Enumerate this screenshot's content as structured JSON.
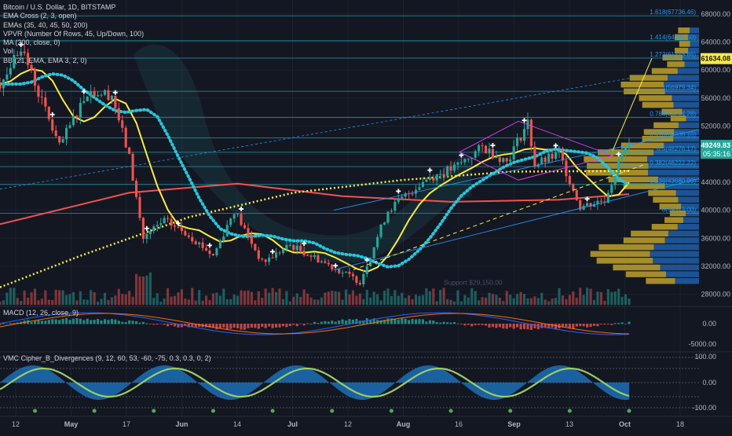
{
  "symbol_title": "Bitcoin / U.S. Dollar, 1D, BITSTAMP",
  "indicators": [
    "EMA Cross (2, 3, open)",
    "EMAs (35, 40, 45, 50, 200)",
    "VPVR (Number Of Rows, 45, Up/Down, 100)",
    "MA (200, close, 0)",
    "Vol",
    "BB (21, EMA, EMA 3, 2, 0)"
  ],
  "macd_label": "MACD (12, 26, close, 9)",
  "osc_label": "VMC Cipher_B_Divergences (9, 12, 60, 53, -60, -75, 0.3, 0.3, 0, 2)",
  "colors": {
    "background": "#131722",
    "up": "#26a69a",
    "down": "#ef5350",
    "ema_yellow": "#ffeb3b",
    "ma200": "#ef5350",
    "teal_dots": "#26c6da",
    "fib": "#2196f3",
    "vpvr_up": "#bfa12a",
    "vpvr_down": "#1e5ea8",
    "price_tag": "#ffeb3b"
  },
  "price_axis": {
    "ticks": [
      "68000.00",
      "64000.00",
      "60000.00",
      "56000.00",
      "52000.00",
      "48000.00",
      "44000.00",
      "40000.00",
      "36000.00",
      "32000.00",
      "28000.00"
    ],
    "current_price": "49249.83",
    "countdown": "05:35:16",
    "target_price": "61634.08"
  },
  "macd_axis": {
    "ticks": [
      "0.00",
      "-5000.00"
    ]
  },
  "osc_axis": {
    "ticks": [
      "100.00",
      "0.00",
      "-100.00"
    ]
  },
  "time_axis": {
    "ticks": [
      "12",
      "May",
      "17",
      "Jun",
      "14",
      "Jul",
      "12",
      "Aug",
      "16",
      "Sep",
      "13",
      "Oct",
      "18"
    ]
  },
  "fib_levels": [
    {
      "label": "1.618(67736.46)",
      "price": 67736
    },
    {
      "label": "1.414(64185.50)",
      "price": 64185
    },
    {
      "label": "1.272(61713.86)",
      "price": 61713
    },
    {
      "label": "1(56979.34)",
      "price": 56979
    },
    {
      "label": "0.786(53254.28)",
      "price": 53254
    },
    {
      "label": "0.618(50330.10)",
      "price": 50330
    },
    {
      "label": "0.5(48276.17)",
      "price": 48276
    },
    {
      "label": "0.382(46222.22)",
      "price": 46222
    },
    {
      "label": "0.236(43680.90)",
      "price": 43680
    },
    {
      "label": "0(39573.00)",
      "price": 39573
    }
  ],
  "annotations": {
    "support_label": "Support $29,150.00"
  },
  "chart_data": {
    "type": "candlestick",
    "title": "Bitcoin / U.S. Dollar, 1D, BITSTAMP",
    "x_range": [
      "2021-04-08",
      "2021-10-25"
    ],
    "ylim": [
      26500,
      70000
    ],
    "y_scale": "linear",
    "grid": true,
    "close_points": [
      {
        "date": "2021-04-08",
        "close": 58000
      },
      {
        "date": "2021-04-14",
        "close": 63500
      },
      {
        "date": "2021-04-20",
        "close": 55500
      },
      {
        "date": "2021-04-25",
        "close": 49000
      },
      {
        "date": "2021-05-03",
        "close": 57000
      },
      {
        "date": "2021-05-10",
        "close": 56500
      },
      {
        "date": "2021-05-15",
        "close": 47500
      },
      {
        "date": "2021-05-19",
        "close": 36000
      },
      {
        "date": "2021-05-25",
        "close": 38500
      },
      {
        "date": "2021-06-01",
        "close": 36500
      },
      {
        "date": "2021-06-08",
        "close": 33500
      },
      {
        "date": "2021-06-14",
        "close": 40000
      },
      {
        "date": "2021-06-22",
        "close": 32500
      },
      {
        "date": "2021-06-30",
        "close": 35000
      },
      {
        "date": "2021-07-08",
        "close": 33000
      },
      {
        "date": "2021-07-20",
        "close": 29800
      },
      {
        "date": "2021-07-28",
        "close": 40000
      },
      {
        "date": "2021-08-08",
        "close": 44500
      },
      {
        "date": "2021-08-16",
        "close": 46000
      },
      {
        "date": "2021-08-24",
        "close": 49000
      },
      {
        "date": "2021-08-31",
        "close": 47000
      },
      {
        "date": "2021-09-06",
        "close": 52500
      },
      {
        "date": "2021-09-08",
        "close": 46500
      },
      {
        "date": "2021-09-15",
        "close": 48000
      },
      {
        "date": "2021-09-21",
        "close": 40500
      },
      {
        "date": "2021-09-28",
        "close": 41500
      },
      {
        "date": "2021-10-03",
        "close": 48000
      },
      {
        "date": "2021-10-05",
        "close": 49250
      }
    ],
    "lines": [
      {
        "name": "MA (200, close, 0)",
        "points": [
          {
            "date": "2021-04-08",
            "value": 38000
          },
          {
            "date": "2021-05-15",
            "value": 42500
          },
          {
            "date": "2021-06-15",
            "value": 43800
          },
          {
            "date": "2021-07-15",
            "value": 42000
          },
          {
            "date": "2021-08-15",
            "value": 41200
          },
          {
            "date": "2021-09-15",
            "value": 41500
          },
          {
            "date": "2021-10-05",
            "value": 42300
          }
        ]
      },
      {
        "name": "EMA 200",
        "points": [
          {
            "date": "2021-04-08",
            "value": 29000
          },
          {
            "date": "2021-05-01",
            "value": 33500
          },
          {
            "date": "2021-06-01",
            "value": 39000
          },
          {
            "date": "2021-07-01",
            "value": 42500
          },
          {
            "date": "2021-08-01",
            "value": 44300
          },
          {
            "date": "2021-09-01",
            "value": 45500
          },
          {
            "date": "2021-10-05",
            "value": 45600
          }
        ]
      }
    ]
  }
}
